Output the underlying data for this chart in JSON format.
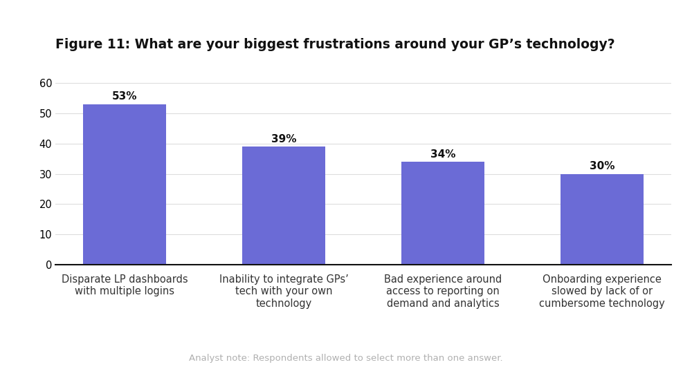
{
  "title": "Figure 11: What are your biggest frustrations around your GP’s technology?",
  "categories": [
    "Disparate LP dashboards\nwith multiple logins",
    "Inability to integrate GPs’\ntech with your own\ntechnology",
    "Bad experience around\naccess to reporting on\ndemand and analytics",
    "Onboarding experience\nslowed by lack of or\ncumbersome technology"
  ],
  "values": [
    53,
    39,
    34,
    30
  ],
  "bar_color": "#6B6BD6",
  "ylim": [
    0,
    60
  ],
  "yticks": [
    0,
    10,
    20,
    30,
    40,
    50,
    60
  ],
  "background_color": "#ffffff",
  "title_fontsize": 13.5,
  "label_fontsize": 10.5,
  "tick_fontsize": 10.5,
  "value_fontsize": 11,
  "analyst_note": "Analyst note: Respondents allowed to select more than one answer.",
  "analyst_note_fontsize": 9.5,
  "analyst_note_color": "#b0b0b0"
}
